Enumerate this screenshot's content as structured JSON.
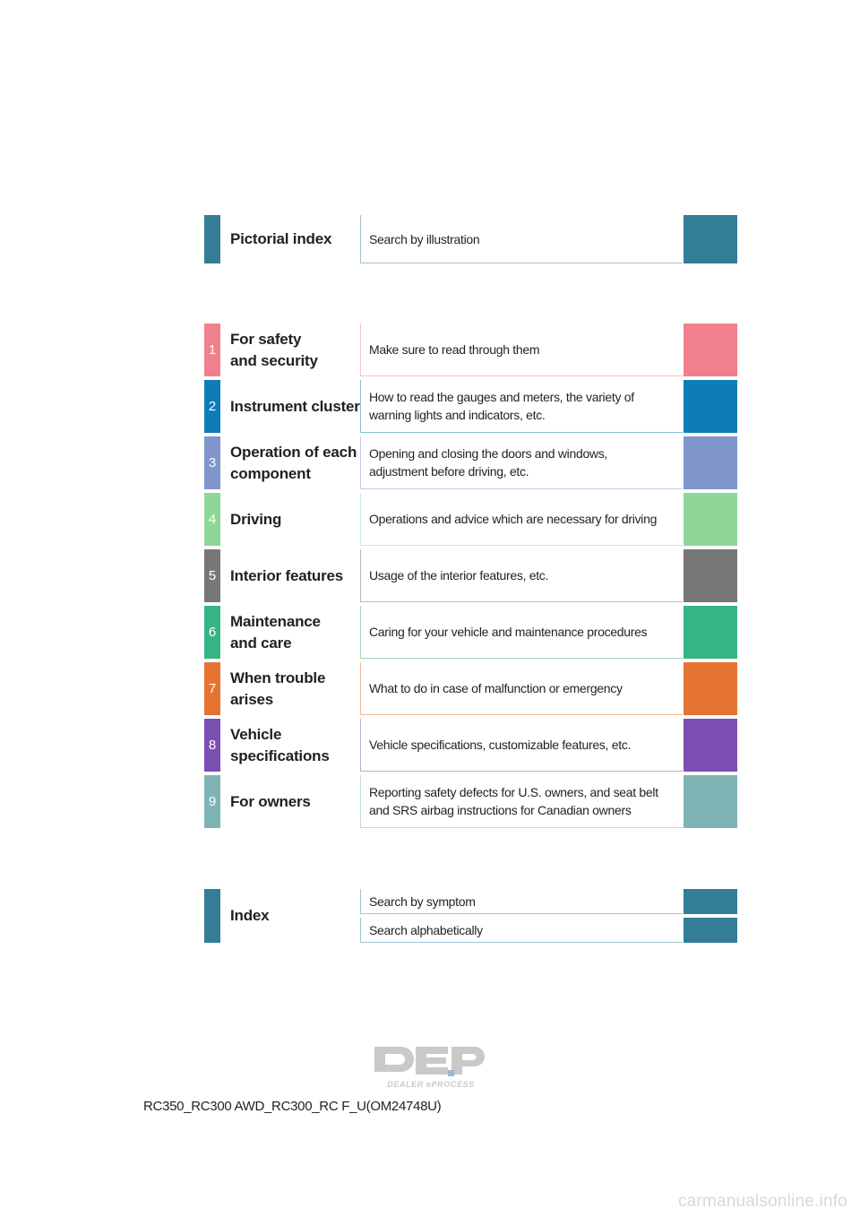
{
  "pictorial": {
    "title": "Pictorial index",
    "desc": "Search by illustration",
    "color": "#337d97"
  },
  "chapters": [
    {
      "num": "1",
      "title_lines": [
        "For safety",
        "and security"
      ],
      "desc_lines": [
        "Make sure to read through them"
      ],
      "color": "#f0808d"
    },
    {
      "num": "2",
      "title_lines": [
        "Instrument cluster"
      ],
      "desc_lines": [
        "How to read the gauges and meters, the variety of",
        "warning lights and indicators, etc."
      ],
      "color": "#0d7db8"
    },
    {
      "num": "3",
      "title_lines": [
        "Operation of each",
        "component"
      ],
      "desc_lines": [
        "Opening and closing the doors and windows,",
        "adjustment before driving, etc."
      ],
      "color": "#8096cc"
    },
    {
      "num": "4",
      "title_lines": [
        "Driving"
      ],
      "desc_lines": [
        "Operations and advice which are necessary for driving"
      ],
      "color": "#8ed798"
    },
    {
      "num": "5",
      "title_lines": [
        "Interior features"
      ],
      "desc_lines": [
        "Usage of the interior features, etc."
      ],
      "color": "#777777"
    },
    {
      "num": "6",
      "title_lines": [
        "Maintenance",
        "and care"
      ],
      "desc_lines": [
        "Caring for your vehicle and maintenance procedures"
      ],
      "color": "#35b583"
    },
    {
      "num": "7",
      "title_lines": [
        "When trouble",
        "arises"
      ],
      "desc_lines": [
        "What to do in case of malfunction or emergency"
      ],
      "color": "#e57433"
    },
    {
      "num": "8",
      "title_lines": [
        "Vehicle",
        "specifications"
      ],
      "desc_lines": [
        "Vehicle specifications, customizable features, etc."
      ],
      "color": "#7c4fb3"
    },
    {
      "num": "9",
      "title_lines": [
        "For owners"
      ],
      "desc_lines": [
        "Reporting safety defects for U.S. owners, and seat belt",
        "and SRS airbag instructions for Canadian owners"
      ],
      "color": "#7fb4b5"
    }
  ],
  "index": {
    "title": "Index",
    "items": [
      "Search by symptom",
      "Search alphabetically"
    ],
    "color": "#337d97"
  },
  "logo": {
    "text": "DEP",
    "subtext": "DEALER ePROCESS"
  },
  "footer": "RC350_RC300 AWD_RC300_RC F_U(OM24748U)",
  "watermark": "carmanualsonline.info"
}
